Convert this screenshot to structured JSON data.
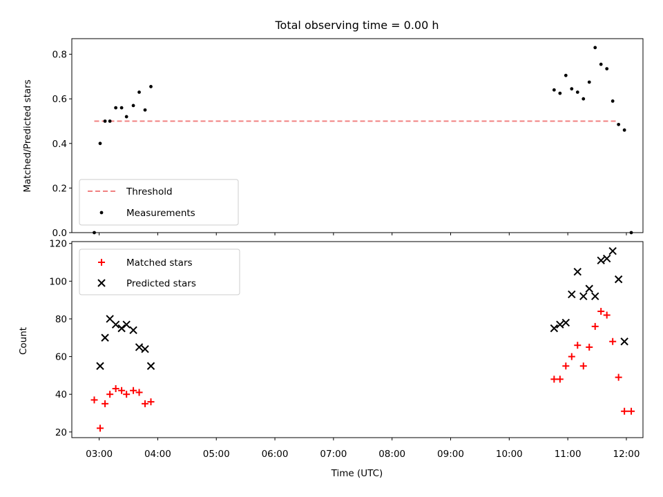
{
  "chart_data": [
    {
      "type": "scatter",
      "title": "Total observing time = 0.00 h",
      "ylabel": "Matched/Predicted stars",
      "xlabel": "",
      "xlim": [
        "02:32",
        "12:17"
      ],
      "ylim": [
        0,
        0.87
      ],
      "yticks": [
        0.0,
        0.2,
        0.4,
        0.6,
        0.8
      ],
      "ytick_labels": [
        "0.0",
        "0.2",
        "0.4",
        "0.6",
        "0.8"
      ],
      "grid": false,
      "legend_position": "lower-left",
      "series": [
        {
          "name": "Threshold",
          "kind": "dashed-line",
          "color": "#f08080",
          "x": [
            "02:55",
            "11:50"
          ],
          "y": [
            0.5,
            0.5
          ]
        },
        {
          "name": "Measurements",
          "kind": "points",
          "color": "#000000",
          "x": [
            "02:55",
            "03:01",
            "03:06",
            "03:11",
            "03:17",
            "03:23",
            "03:28",
            "03:35",
            "03:41",
            "03:47",
            "03:53",
            "10:46",
            "10:52",
            "10:58",
            "11:04",
            "11:10",
            "11:16",
            "11:22",
            "11:28",
            "11:34",
            "11:40",
            "11:46",
            "11:52",
            "11:58",
            "12:05"
          ],
          "y": [
            0.0,
            0.4,
            0.5,
            0.5,
            0.56,
            0.56,
            0.52,
            0.57,
            0.63,
            0.55,
            0.655,
            0.64,
            0.625,
            0.705,
            0.645,
            0.63,
            0.6,
            0.675,
            0.83,
            0.755,
            0.735,
            0.59,
            0.485,
            0.46,
            0.0
          ]
        }
      ]
    },
    {
      "type": "scatter",
      "title": "",
      "xlabel": "Time (UTC)",
      "ylabel": "Count",
      "xlim": [
        "02:32",
        "12:17"
      ],
      "ylim": [
        17,
        121
      ],
      "yticks": [
        20,
        40,
        60,
        80,
        100,
        120
      ],
      "ytick_labels": [
        "20",
        "40",
        "60",
        "80",
        "100",
        "120"
      ],
      "xticks": [
        "03:00",
        "04:00",
        "05:00",
        "06:00",
        "07:00",
        "08:00",
        "09:00",
        "10:00",
        "11:00",
        "12:00"
      ],
      "grid": false,
      "legend_position": "upper-left",
      "series": [
        {
          "name": "Matched stars",
          "marker": "plus",
          "color": "#ff0000",
          "x": [
            "02:55",
            "03:01",
            "03:06",
            "03:11",
            "03:17",
            "03:23",
            "03:28",
            "03:35",
            "03:41",
            "03:47",
            "03:53",
            "10:46",
            "10:52",
            "10:58",
            "11:04",
            "11:10",
            "11:16",
            "11:22",
            "11:28",
            "11:34",
            "11:40",
            "11:46",
            "11:52",
            "11:58",
            "12:05"
          ],
          "y": [
            37,
            22,
            35,
            40,
            43,
            42,
            40,
            42,
            41,
            35,
            36,
            48,
            48,
            55,
            60,
            66,
            55,
            65,
            76,
            84,
            82,
            68,
            49,
            31,
            31
          ]
        },
        {
          "name": "Predicted stars",
          "marker": "x",
          "color": "#000000",
          "x": [
            "03:01",
            "03:06",
            "03:11",
            "03:17",
            "03:23",
            "03:28",
            "03:35",
            "03:41",
            "03:47",
            "03:53",
            "10:46",
            "10:52",
            "10:58",
            "11:04",
            "11:10",
            "11:16",
            "11:22",
            "11:28",
            "11:34",
            "11:40",
            "11:46",
            "11:52",
            "11:58"
          ],
          "y": [
            55,
            70,
            80,
            77,
            75,
            77,
            74,
            65,
            64,
            55,
            75,
            77,
            78,
            93,
            105,
            92,
            96,
            92,
            111,
            112,
            116,
            101,
            68
          ]
        }
      ]
    }
  ]
}
